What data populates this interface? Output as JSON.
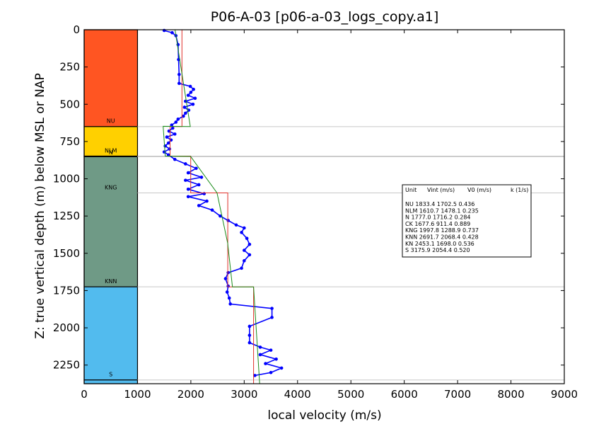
{
  "chart_data": {
    "type": "line",
    "title": "P06-A-03 [p06-a-03_logs_copy.a1]",
    "xlabel": "local velocity (m/s)",
    "ylabel": "Z: true vertical depth (m) below MSL or NAP",
    "xlim": [
      0,
      9000
    ],
    "ylim": [
      2375,
      0
    ],
    "x_ticks": [
      0,
      1000,
      2000,
      3000,
      4000,
      5000,
      6000,
      7000,
      8000,
      9000
    ],
    "y_ticks": [
      0,
      250,
      500,
      750,
      1000,
      1250,
      1500,
      1750,
      2000,
      2250
    ],
    "grid": false,
    "colors": {
      "NU": "#ff5522",
      "NLM": "#ffd000",
      "KNG": "#6f9a86",
      "S": "#52bbee",
      "log": "#0000ff",
      "interval_velocity": "#e0302a",
      "linear_model": "#1a8c1a",
      "boundary_line": "#c8c8c8"
    },
    "units": [
      {
        "label": "NU",
        "top": 0,
        "base": 650,
        "color": "#ff5522"
      },
      {
        "label": "NLM",
        "top": 650,
        "base": 848,
        "color": "#ffd000"
      },
      {
        "label": "N",
        "top": 848,
        "base": 852,
        "color": "#ffd000"
      },
      {
        "label": "KNG",
        "top": 852,
        "base": 1725,
        "color": "#6f9a86"
      },
      {
        "label": "KNN",
        "top": 1725,
        "base": 2350,
        "color": "#52bbee"
      },
      {
        "label": "S",
        "top": 2350,
        "base": 2375,
        "color": "#52bbee"
      }
    ],
    "strip_labels": [
      {
        "text": "NU",
        "depth": 625
      },
      {
        "text": "NLM",
        "depth": 825
      },
      {
        "text": "N",
        "depth": 835
      },
      {
        "text": "KNG",
        "depth": 1070
      },
      {
        "text": "KNN",
        "depth": 1700
      },
      {
        "text": "S",
        "depth": 2325
      }
    ],
    "boundaries": [
      650,
      848,
      852,
      1095,
      1725,
      2350
    ],
    "series": [
      {
        "kind": "step",
        "color": "#e0302a",
        "points": [
          [
            1833,
            0
          ],
          [
            1833,
            650
          ],
          [
            1611,
            650
          ],
          [
            1611,
            848
          ],
          [
            1998,
            848
          ],
          [
            1998,
            1095
          ],
          [
            2692,
            1095
          ],
          [
            2692,
            1725
          ],
          [
            3176,
            1725
          ],
          [
            3176,
            2375
          ]
        ]
      },
      {
        "kind": "line",
        "color": "#1a8c1a",
        "points": [
          [
            1703,
            0
          ],
          [
            1990,
            650
          ],
          [
            1480,
            648
          ],
          [
            1520,
            848
          ],
          [
            1995,
            850
          ],
          [
            2490,
            1095
          ],
          [
            2690,
            1430
          ],
          [
            2780,
            1725
          ],
          [
            3176,
            1725
          ],
          [
            3290,
            2375
          ]
        ]
      },
      {
        "kind": "log",
        "color": "#0000ff",
        "points": [
          [
            1500,
            5
          ],
          [
            1650,
            20
          ],
          [
            1720,
            40
          ],
          [
            1760,
            100
          ],
          [
            1770,
            200
          ],
          [
            1780,
            300
          ],
          [
            1780,
            360
          ],
          [
            1990,
            380
          ],
          [
            2050,
            400
          ],
          [
            2000,
            420
          ],
          [
            1950,
            440
          ],
          [
            2080,
            460
          ],
          [
            1900,
            480
          ],
          [
            2040,
            500
          ],
          [
            1880,
            520
          ],
          [
            1960,
            540
          ],
          [
            1900,
            560
          ],
          [
            1860,
            580
          ],
          [
            1760,
            600
          ],
          [
            1720,
            620
          ],
          [
            1640,
            640
          ],
          [
            1660,
            660
          ],
          [
            1590,
            680
          ],
          [
            1700,
            700
          ],
          [
            1550,
            720
          ],
          [
            1630,
            740
          ],
          [
            1580,
            760
          ],
          [
            1520,
            780
          ],
          [
            1600,
            800
          ],
          [
            1500,
            820
          ],
          [
            1580,
            840
          ],
          [
            1700,
            870
          ],
          [
            1900,
            900
          ],
          [
            2100,
            930
          ],
          [
            1950,
            960
          ],
          [
            2200,
            990
          ],
          [
            1900,
            1010
          ],
          [
            2150,
            1040
          ],
          [
            1950,
            1070
          ],
          [
            2250,
            1100
          ],
          [
            1950,
            1120
          ],
          [
            2300,
            1150
          ],
          [
            2150,
            1180
          ],
          [
            2400,
            1210
          ],
          [
            2550,
            1250
          ],
          [
            2700,
            1280
          ],
          [
            2850,
            1310
          ],
          [
            3000,
            1330
          ],
          [
            2950,
            1360
          ],
          [
            3050,
            1400
          ],
          [
            3100,
            1440
          ],
          [
            3000,
            1480
          ],
          [
            3100,
            1510
          ],
          [
            3000,
            1550
          ],
          [
            2950,
            1600
          ],
          [
            2700,
            1630
          ],
          [
            2650,
            1670
          ],
          [
            2700,
            1720
          ],
          [
            2680,
            1760
          ],
          [
            2720,
            1800
          ],
          [
            2740,
            1840
          ],
          [
            3520,
            1870
          ],
          [
            3520,
            1930
          ],
          [
            3100,
            1990
          ],
          [
            3100,
            2050
          ],
          [
            3100,
            2100
          ],
          [
            3300,
            2130
          ],
          [
            3500,
            2150
          ],
          [
            3300,
            2180
          ],
          [
            3600,
            2210
          ],
          [
            3400,
            2240
          ],
          [
            3700,
            2270
          ],
          [
            3500,
            2300
          ],
          [
            3200,
            2320
          ]
        ]
      }
    ],
    "legend": {
      "header": [
        "Unit",
        "Vint (m/s)",
        "V0 (m/s)",
        "k (1/s)"
      ],
      "rows": [
        "NU      1833.4  1702.5  0.436",
        "NLM      1610.7  1478.1  0.235",
        "N      1777.0  1716.2  0.284",
        "CK      1677.6  911.4  0.889",
        "KNG      1997.8  1288.9  0.737",
        "KNN      2691.7  2068.4  0.428",
        "KN      2453.1  1698.0  0.536",
        "S      3175.9  2054.4  0.520"
      ]
    }
  }
}
